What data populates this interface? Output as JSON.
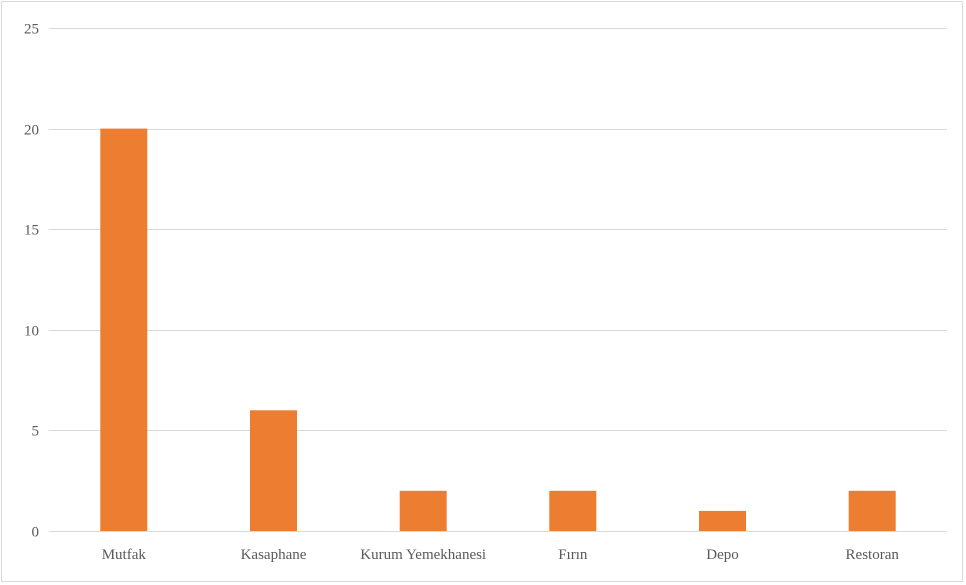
{
  "chart_data": {
    "type": "bar",
    "categories": [
      "Mutfak",
      "Kasaphane",
      "Kurum Yemekhanesi",
      "Fırın",
      "Depo",
      "Restoran"
    ],
    "series": [
      {
        "values": [
          20,
          6,
          2,
          2,
          1,
          2
        ]
      }
    ],
    "title": "",
    "xlabel": "",
    "ylabel": "",
    "ylim": [
      0,
      25
    ],
    "yticks": [
      0,
      5,
      10,
      15,
      20,
      25
    ],
    "grid": true,
    "legend": "none",
    "colors": {
      "bar": "#ed7d31",
      "grid": "#d9d9d9",
      "tick_text": "#595959"
    }
  }
}
